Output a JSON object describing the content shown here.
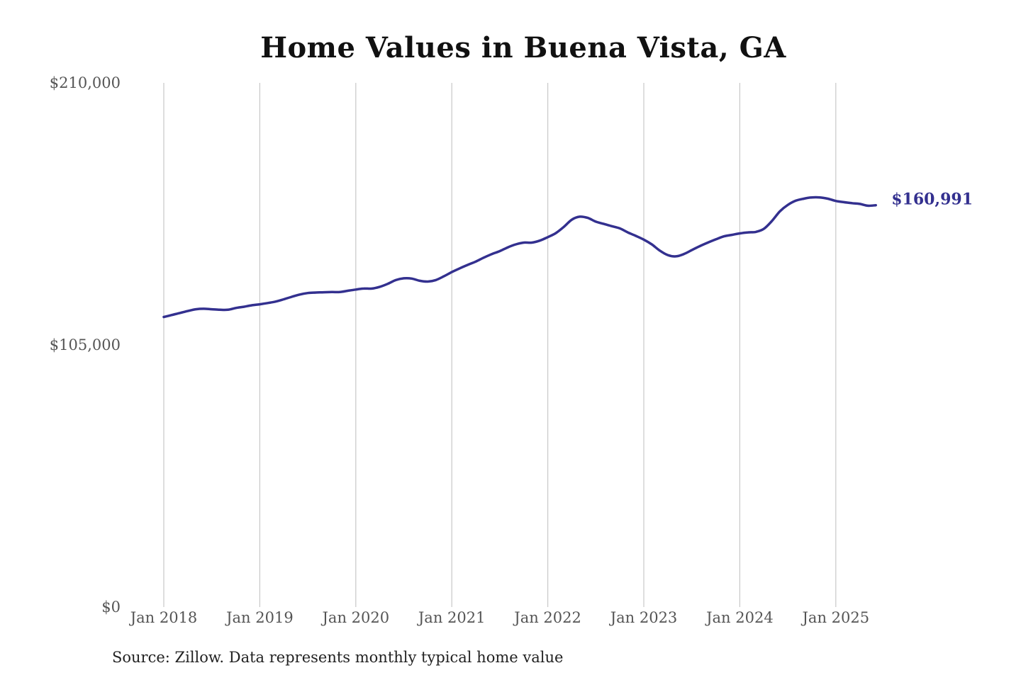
{
  "chart_data": {
    "type": "line",
    "title": "Home Values in Buena Vista, GA",
    "source": "Source: Zillow. Data represents monthly typical home value",
    "ylim": [
      0,
      210000
    ],
    "y_ticks": [
      {
        "value": 0,
        "label": "$0"
      },
      {
        "value": 105000,
        "label": "$105,000"
      },
      {
        "value": 210000,
        "label": "$210,000"
      }
    ],
    "x_ticks": [
      {
        "value": "2018-01",
        "label": "Jan 2018"
      },
      {
        "value": "2019-01",
        "label": "Jan 2019"
      },
      {
        "value": "2020-01",
        "label": "Jan 2020"
      },
      {
        "value": "2021-01",
        "label": "Jan 2021"
      },
      {
        "value": "2022-01",
        "label": "Jan 2022"
      },
      {
        "value": "2023-01",
        "label": "Jan 2023"
      },
      {
        "value": "2024-01",
        "label": "Jan 2024"
      },
      {
        "value": "2025-01",
        "label": "Jan 2025"
      }
    ],
    "grid": "vertical at x ticks",
    "end_label": "$160,991",
    "line_color": "#33308f",
    "series": [
      {
        "x": [
          "2018-01",
          "2018-02",
          "2018-03",
          "2018-04",
          "2018-05",
          "2018-06",
          "2018-07",
          "2018-08",
          "2018-09",
          "2018-10",
          "2018-11",
          "2018-12",
          "2019-01",
          "2019-02",
          "2019-03",
          "2019-04",
          "2019-05",
          "2019-06",
          "2019-07",
          "2019-08",
          "2019-09",
          "2019-10",
          "2019-11",
          "2019-12",
          "2020-01",
          "2020-02",
          "2020-03",
          "2020-04",
          "2020-05",
          "2020-06",
          "2020-07",
          "2020-08",
          "2020-09",
          "2020-10",
          "2020-11",
          "2020-12",
          "2021-01",
          "2021-02",
          "2021-03",
          "2021-04",
          "2021-05",
          "2021-06",
          "2021-07",
          "2021-08",
          "2021-09",
          "2021-10",
          "2021-11",
          "2021-12",
          "2022-01",
          "2022-02",
          "2022-03",
          "2022-04",
          "2022-05",
          "2022-06",
          "2022-07",
          "2022-08",
          "2022-09",
          "2022-10",
          "2022-11",
          "2022-12",
          "2023-01",
          "2023-02",
          "2023-03",
          "2023-04",
          "2023-05",
          "2023-06",
          "2023-07",
          "2023-08",
          "2023-09",
          "2023-10",
          "2023-11",
          "2023-12",
          "2024-01",
          "2024-02",
          "2024-03",
          "2024-04",
          "2024-05",
          "2024-06",
          "2024-07",
          "2024-08",
          "2024-09",
          "2024-10",
          "2024-11",
          "2024-12",
          "2025-01",
          "2025-02",
          "2025-03",
          "2025-04",
          "2025-05",
          "2025-06"
        ],
        "values": [
          116200,
          117000,
          117800,
          118600,
          119300,
          119500,
          119300,
          119100,
          119100,
          119800,
          120300,
          120900,
          121300,
          121800,
          122400,
          123300,
          124300,
          125200,
          125800,
          126000,
          126100,
          126200,
          126200,
          126700,
          127200,
          127600,
          127600,
          128300,
          129500,
          131000,
          131700,
          131600,
          130700,
          130400,
          131000,
          132500,
          134200,
          135700,
          137100,
          138400,
          140000,
          141400,
          142600,
          144100,
          145300,
          146000,
          146000,
          146800,
          148200,
          149800,
          152300,
          155200,
          156400,
          155900,
          154400,
          153500,
          152600,
          151700,
          150100,
          148700,
          147200,
          145300,
          142800,
          141000,
          140500,
          141400,
          143000,
          144600,
          146000,
          147300,
          148500,
          149100,
          149700,
          150100,
          150300,
          151500,
          154600,
          158500,
          161100,
          162800,
          163600,
          164100,
          164100,
          163600,
          162700,
          162200,
          161800,
          161500,
          160800,
          160991
        ]
      }
    ]
  }
}
